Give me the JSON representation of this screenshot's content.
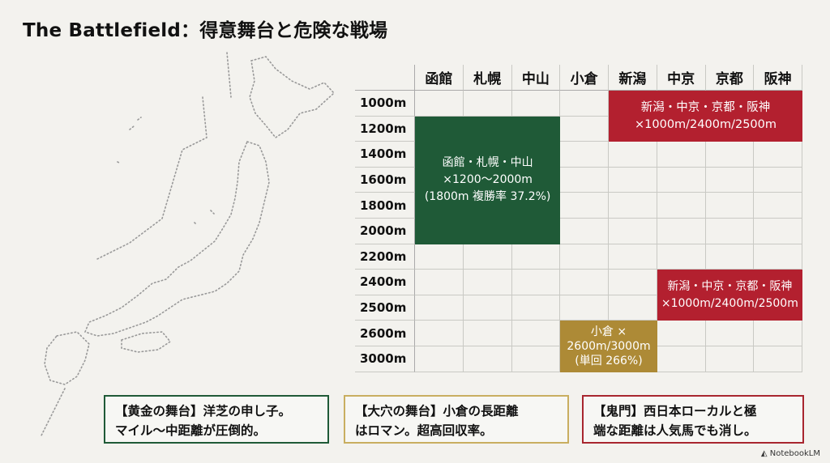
{
  "title": "The Battlefield：得意舞台と危険な戦場",
  "columns": [
    "函館",
    "札幌",
    "中山",
    "小倉",
    "新潟",
    "中京",
    "京都",
    "阪神"
  ],
  "rows": [
    "1000m",
    "1200m",
    "1400m",
    "1600m",
    "1800m",
    "2000m",
    "2200m",
    "2400m",
    "2500m",
    "2600m",
    "3000m"
  ],
  "blocks": {
    "green": {
      "lines": [
        "函館・札幌・中山",
        "×1200〜2000m",
        "(1800m 複勝率 37.2%)"
      ],
      "color": "#1f5a37"
    },
    "red_top": {
      "lines": [
        "新潟・中京・京都・阪神",
        "×1000m/2400m/2500m"
      ],
      "color": "#b3202f"
    },
    "red_bottom": {
      "lines": [
        "新潟・中京・京都・阪神",
        "×1000m/2400m/2500m"
      ],
      "color": "#b3202f"
    },
    "gold": {
      "lines": [
        "小倉 ×",
        "2600m/3000m",
        "(単回 266%)"
      ],
      "color": "#ad8a36"
    }
  },
  "notes": [
    {
      "lines": [
        "【黄金の舞台】洋芝の申し子。",
        "マイル〜中距離が圧倒的。"
      ]
    },
    {
      "lines": [
        "【大穴の舞台】小倉の長距離",
        "はロマン。超高回収率。"
      ]
    },
    {
      "lines": [
        "【鬼門】西日本ローカルと極",
        "端な距離は人気馬でも消し。"
      ]
    }
  ],
  "brand": "NotebookLM"
}
